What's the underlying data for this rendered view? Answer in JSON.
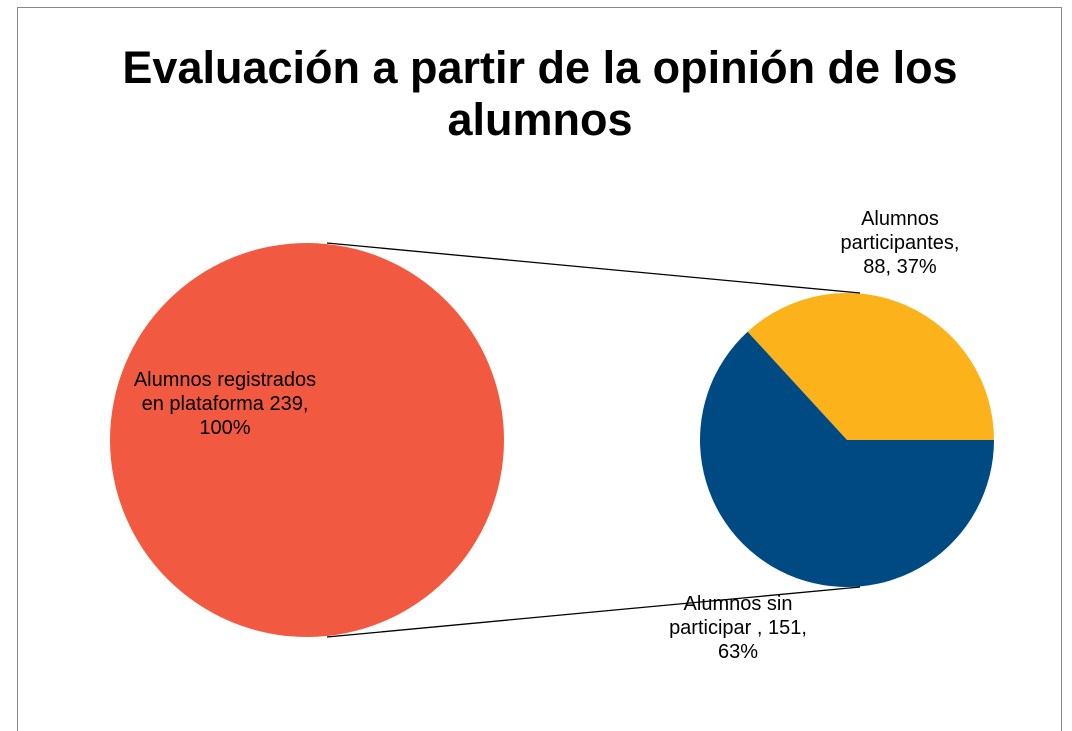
{
  "chart_data": {
    "type": "pie-of-pie",
    "title": "Evaluación a partir de la opinión de los alumnos",
    "main": {
      "values": [
        239
      ],
      "value_labels": [
        "Alumnos registrados en plataforma 239, 100%"
      ],
      "colors": [
        "#f15a40"
      ]
    },
    "secondary": {
      "values": [
        88,
        151
      ],
      "value_labels": [
        "Alumnos participantes, 88, 37%",
        "Alumnos sin participar , 151, 63%"
      ],
      "colors": [
        "#fbb21b",
        "#004a84"
      ]
    }
  }
}
